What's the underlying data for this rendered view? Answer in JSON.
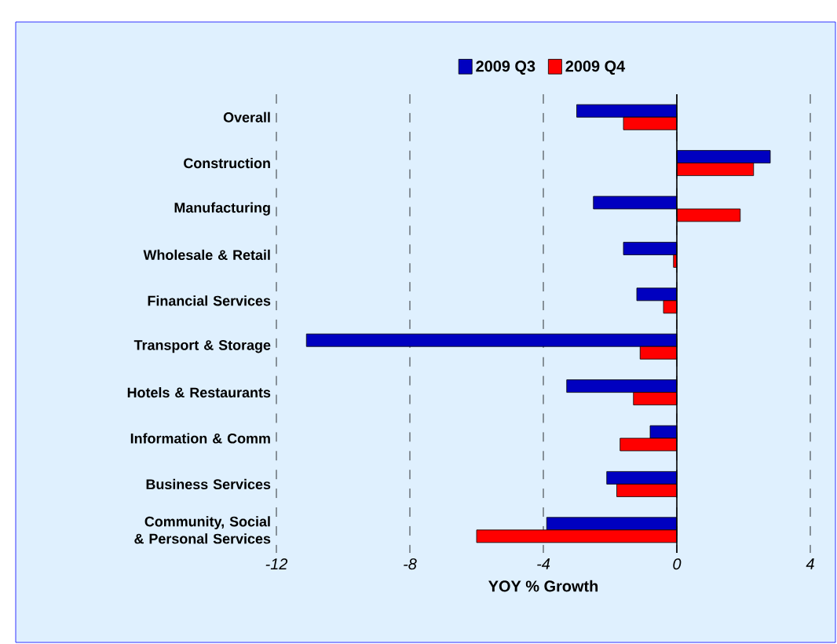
{
  "chart_data": {
    "type": "bar",
    "orientation": "horizontal",
    "xlabel": "YOY % Growth",
    "categories": [
      "Overall",
      "Construction",
      "Manufacturing",
      "Wholesale & Retail",
      "Financial Services",
      "Transport & Storage",
      "Hotels & Restaurants",
      "Information & Comm",
      "Business Services",
      "Community, Social & Personal Services"
    ],
    "series": [
      {
        "name": "2009 Q3",
        "color": "#0000c0",
        "values": [
          -3.0,
          2.8,
          -2.5,
          -1.6,
          -1.2,
          -11.1,
          -3.3,
          -0.8,
          -2.1,
          -3.9
        ]
      },
      {
        "name": "2009 Q4",
        "color": "#ff0000",
        "values": [
          -1.6,
          2.3,
          1.9,
          -0.1,
          -0.4,
          -1.1,
          -1.3,
          -1.7,
          -1.8,
          -6.0
        ]
      }
    ],
    "xlim": [
      -12,
      4
    ],
    "xticks": [
      -12,
      -8,
      -4,
      0,
      4
    ],
    "grid": "x",
    "legend": "top"
  }
}
